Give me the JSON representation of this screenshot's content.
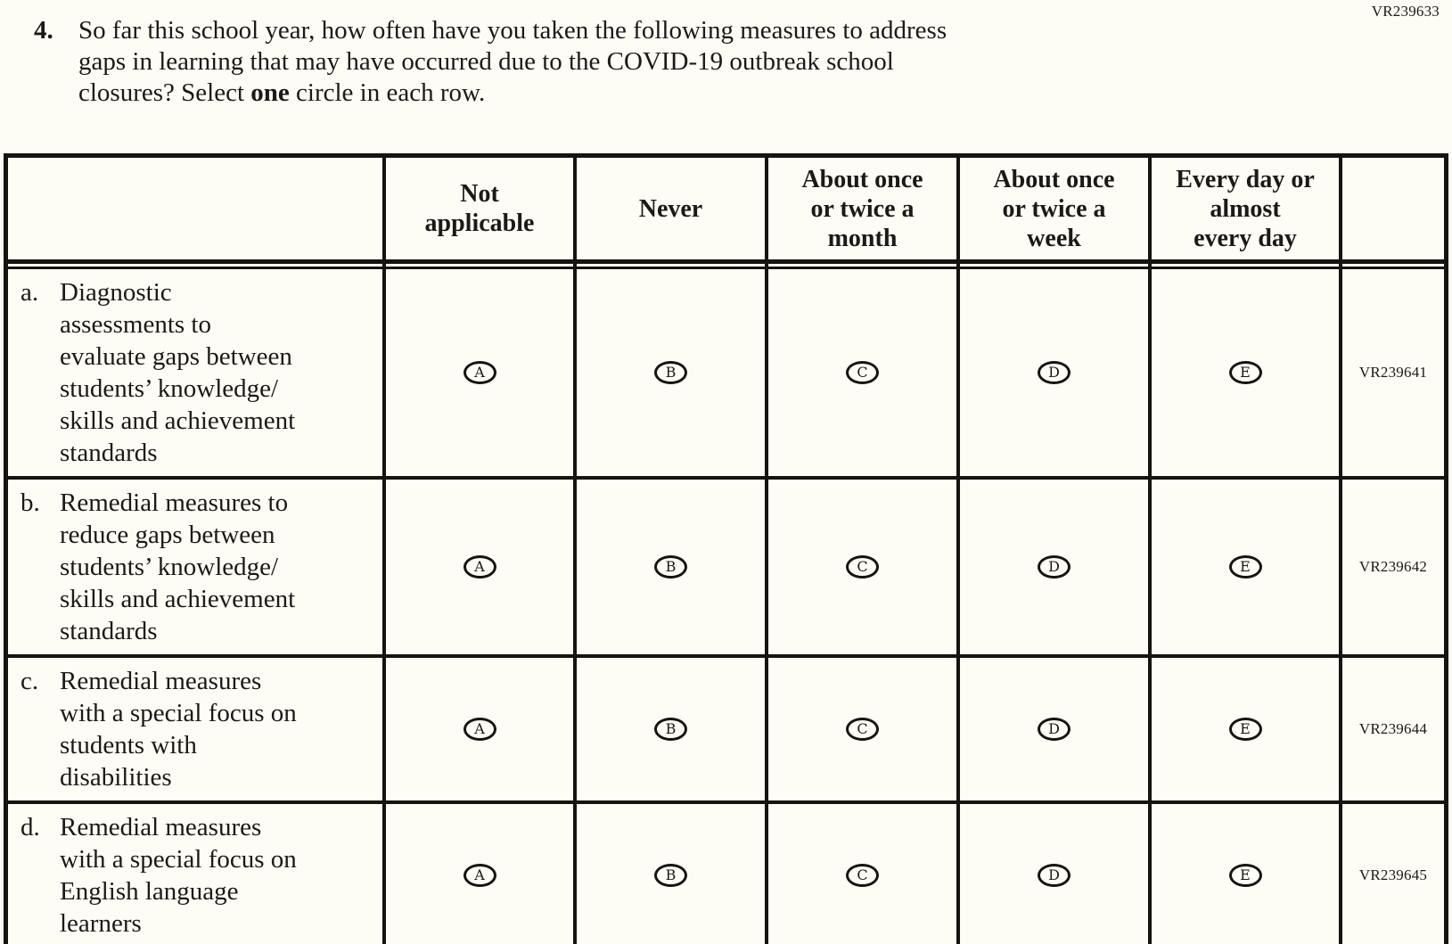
{
  "page": {
    "form_code": "VR239633",
    "paper_color": "#fdfdf6",
    "ink_color": "#1c1916",
    "line_color": "#171310"
  },
  "question": {
    "number": "4.",
    "line1": "So far this school year, how often have you taken the following measures to address",
    "line2": "gaps in learning that may have occurred due to the COVID-19 outbreak school",
    "line3_prefix": "closures? Select ",
    "line3_bold": "one",
    "line3_suffix": " circle in each row."
  },
  "table": {
    "columns": [
      "Not\napplicable",
      "Never",
      "About once\nor twice a\nmonth",
      "About once\nor twice a\nweek",
      "Every day or\nalmost\nevery day"
    ],
    "options": [
      "A",
      "B",
      "C",
      "D",
      "E"
    ],
    "rows": [
      {
        "letter": "a.",
        "text": "Diagnostic\nassessments to\nevaluate gaps between\nstudents’ knowledge/\nskills and achievement\nstandards",
        "code": "VR239641"
      },
      {
        "letter": "b.",
        "text": "Remedial measures to\nreduce gaps between\nstudents’ knowledge/\nskills and achievement\nstandards",
        "code": "VR239642"
      },
      {
        "letter": "c.",
        "text": "Remedial measures\nwith a special focus on\nstudents with\ndisabilities",
        "code": "VR239644"
      },
      {
        "letter": "d.",
        "text": "Remedial measures\nwith a special focus on\nEnglish language\nlearners",
        "code": "VR239645"
      }
    ]
  }
}
